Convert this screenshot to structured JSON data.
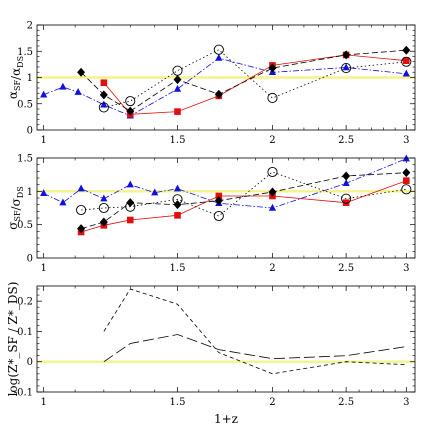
{
  "chart_data": [
    {
      "type": "scatter",
      "ylabel": "α_SF / α_DS",
      "ylabel_main": "α",
      "ylabel_sub1": "SF",
      "ylabel_sub2": "DS",
      "xscale": "log",
      "xlim": [
        0.98,
        3.08
      ],
      "ylim": [
        0,
        2
      ],
      "xticks": [
        "1",
        "1.5",
        "2",
        "2.5",
        "3"
      ],
      "xtick_values": [
        1,
        1.5,
        2,
        2.5,
        3
      ],
      "yticks": [
        "0",
        "0.5",
        "1",
        "1.5",
        "2"
      ],
      "ytick_values": [
        0,
        0.5,
        1,
        1.5,
        2
      ],
      "reference_line": {
        "y": 1,
        "color": "#f5f28a"
      },
      "series": [
        {
          "marker": "triangle",
          "color": "#1010e0",
          "line": "dash-dot",
          "x": [
            1.0,
            1.06,
            1.11,
            1.2,
            1.3,
            1.5,
            1.7,
            2.0,
            2.5,
            3.0
          ],
          "y": [
            0.67,
            0.82,
            0.72,
            0.48,
            0.27,
            0.78,
            1.37,
            1.1,
            1.19,
            1.07
          ]
        },
        {
          "marker": "square",
          "color": "#e01010",
          "line": "solid",
          "x": [
            1.2,
            1.3,
            1.5,
            1.7,
            2.0,
            2.5,
            3.0
          ],
          "y": [
            0.9,
            0.3,
            0.35,
            0.65,
            1.23,
            1.43,
            1.32
          ]
        },
        {
          "marker": "diamond",
          "color": "#000000",
          "line": "dashed",
          "x": [
            1.12,
            1.2,
            1.3,
            1.5,
            1.7,
            2.0,
            2.5,
            3.0
          ],
          "y": [
            1.1,
            0.67,
            0.36,
            0.96,
            0.68,
            1.18,
            1.43,
            1.52
          ]
        },
        {
          "marker": "open-circle",
          "color": "#000000",
          "line": "dotted",
          "x": [
            1.2,
            1.3,
            1.5,
            1.7,
            2.0,
            2.5,
            3.0
          ],
          "y": [
            0.43,
            0.55,
            1.13,
            1.53,
            0.61,
            1.18,
            1.3
          ]
        }
      ]
    },
    {
      "type": "scatter",
      "ylabel": "σ_SF / σ_DS",
      "ylabel_main": "σ",
      "ylabel_sub1": "SF",
      "ylabel_sub2": "DS",
      "xscale": "log",
      "xlim": [
        0.98,
        3.08
      ],
      "ylim": [
        0,
        1.5
      ],
      "xticks": [
        "1",
        "1.5",
        "2",
        "2.5",
        "3"
      ],
      "xtick_values": [
        1,
        1.5,
        2,
        2.5,
        3
      ],
      "yticks": [
        "0",
        "0.5",
        "1",
        "1.5"
      ],
      "ytick_values": [
        0,
        0.5,
        1,
        1.5
      ],
      "reference_line": {
        "y": 1,
        "color": "#f5f28a"
      },
      "series": [
        {
          "marker": "triangle",
          "color": "#1010e0",
          "line": "dash-dot",
          "x": [
            1.0,
            1.06,
            1.12,
            1.2,
            1.3,
            1.4,
            1.5,
            1.7,
            2.0,
            2.5,
            3.0
          ],
          "y": [
            0.97,
            0.83,
            1.04,
            0.89,
            1.1,
            0.98,
            1.04,
            0.82,
            0.75,
            1.12,
            1.49
          ]
        },
        {
          "marker": "square",
          "color": "#e01010",
          "line": "solid",
          "x": [
            1.12,
            1.2,
            1.3,
            1.5,
            1.7,
            2.0,
            2.5,
            3.0
          ],
          "y": [
            0.39,
            0.49,
            0.57,
            0.64,
            0.93,
            0.93,
            0.83,
            1.16
          ]
        },
        {
          "marker": "diamond",
          "color": "#000000",
          "line": "dashed",
          "x": [
            1.12,
            1.2,
            1.3,
            1.5,
            1.7,
            2.0,
            2.5,
            3.0
          ],
          "y": [
            0.44,
            0.54,
            0.83,
            0.8,
            0.86,
            0.99,
            1.23,
            1.28
          ]
        },
        {
          "marker": "open-circle",
          "color": "#000000",
          "line": "dotted",
          "x": [
            1.12,
            1.2,
            1.3,
            1.5,
            1.7,
            2.0,
            2.5,
            3.0
          ],
          "y": [
            0.72,
            0.75,
            0.77,
            0.88,
            0.63,
            1.29,
            0.89,
            1.03
          ]
        }
      ]
    },
    {
      "type": "line",
      "ylabel": "log(Z*_SF / Z*_DS)",
      "xlabel": "1+z",
      "xscale": "log",
      "xlim": [
        0.98,
        3.08
      ],
      "ylim": [
        -0.1,
        0.25
      ],
      "xticks": [
        "1",
        "1.5",
        "2",
        "2.5",
        "3"
      ],
      "xtick_values": [
        1,
        1.5,
        2,
        2.5,
        3
      ],
      "yticks": [
        "-0.1",
        "0",
        "0.1",
        "0.2"
      ],
      "ytick_values": [
        -0.1,
        0,
        0.1,
        0.2
      ],
      "reference_line": {
        "y": 0,
        "color": "#f5f28a"
      },
      "series": [
        {
          "line": "short-dash",
          "color": "#000000",
          "x": [
            1.2,
            1.3,
            1.5,
            1.7,
            2.0,
            2.5,
            3.0
          ],
          "y": [
            0.1,
            0.24,
            0.19,
            0.03,
            -0.04,
            0.0,
            -0.01
          ]
        },
        {
          "line": "long-dash",
          "color": "#000000",
          "x": [
            1.2,
            1.3,
            1.5,
            1.7,
            2.0,
            2.5,
            3.0
          ],
          "y": [
            0.0,
            0.06,
            0.09,
            0.04,
            0.01,
            0.02,
            0.05
          ]
        }
      ]
    }
  ]
}
